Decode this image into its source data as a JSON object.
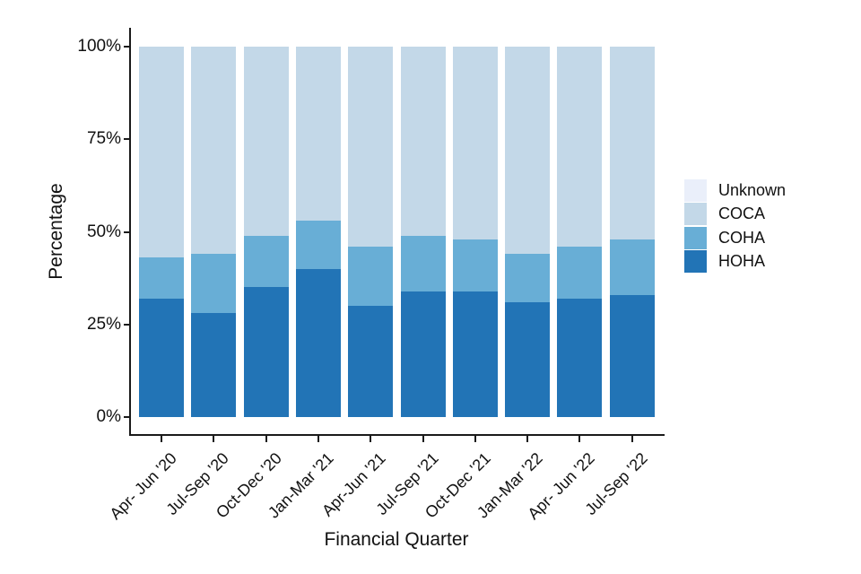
{
  "chart_data": {
    "type": "bar",
    "stacked": true,
    "orientation": "vertical",
    "title": "",
    "xlabel": "Financial Quarter",
    "ylabel": "Percentage",
    "ylim": [
      0,
      100
    ],
    "y_tick_labels": [
      "0%",
      "25%",
      "50%",
      "75%",
      "100%"
    ],
    "y_tick_values": [
      0,
      25,
      50,
      75,
      100
    ],
    "grid": false,
    "categories": [
      "Apr- Jun '20",
      "Jul-Sep '20",
      "Oct-Dec '20",
      "Jan-Mar '21",
      "Apr-Jun '21",
      "Jul-Sep '21",
      "Oct-Dec '21",
      "Jan-Mar '22",
      "Apr- Jun '22",
      "Jul-Sep '22"
    ],
    "series": [
      {
        "name": "Unknown",
        "color": "#eaeffa",
        "values": [
          0,
          0,
          0,
          0,
          0,
          0,
          0,
          0,
          0,
          0
        ]
      },
      {
        "name": "COCA",
        "color": "#c3d8e8",
        "values": [
          57,
          56,
          51,
          47,
          54,
          51,
          52,
          56,
          54,
          52
        ]
      },
      {
        "name": "COHA",
        "color": "#68aed6",
        "values": [
          11,
          16,
          14,
          13,
          16,
          15,
          14,
          13,
          14,
          15
        ]
      },
      {
        "name": "HOHA",
        "color": "#2274b6",
        "values": [
          32,
          28,
          35,
          40,
          30,
          34,
          34,
          31,
          32,
          33
        ]
      }
    ],
    "legend": {
      "position": "right",
      "entries": [
        "Unknown",
        "COCA",
        "COHA",
        "HOHA"
      ]
    },
    "axis_color": "#1a1a1a",
    "background_color": "#ffffff"
  }
}
